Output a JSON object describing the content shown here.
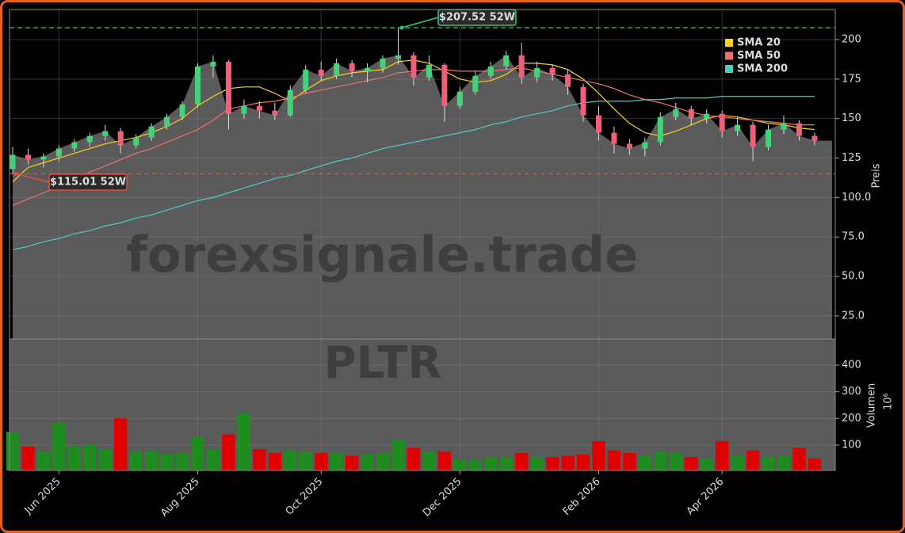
{
  "chart_data": {
    "type": "candlestick",
    "watermark": "forexsignale.trade",
    "symbol": "PLTR",
    "categories": [
      null,
      null,
      null,
      "Jun 2025",
      null,
      null,
      null,
      null,
      null,
      null,
      null,
      null,
      "Aug 2025",
      null,
      null,
      null,
      null,
      null,
      null,
      null,
      "Oct 2025",
      null,
      null,
      null,
      null,
      null,
      null,
      null,
      null,
      "Dec 2025",
      null,
      null,
      null,
      null,
      null,
      null,
      null,
      null,
      "Feb 2026",
      null,
      null,
      null,
      null,
      null,
      null,
      null,
      "Apr 2026",
      null,
      null,
      null,
      null,
      null,
      null
    ],
    "open": [
      118,
      127,
      124,
      126,
      131,
      135,
      139,
      142,
      133,
      138,
      145,
      151,
      159,
      183,
      186,
      153,
      158,
      155,
      152,
      168,
      181,
      177,
      185,
      180,
      182,
      188,
      190,
      176,
      184,
      158,
      167,
      177,
      183,
      190,
      176,
      182,
      178,
      170,
      152,
      141,
      134,
      131,
      135,
      151,
      156,
      150,
      153,
      142,
      146,
      132,
      143,
      147,
      139
    ],
    "high": [
      132,
      131,
      128,
      133,
      137,
      141,
      146,
      144,
      140,
      147,
      153,
      161,
      185,
      190,
      187,
      162,
      161,
      160,
      171,
      184,
      186,
      188,
      187,
      185,
      190,
      207.52,
      192,
      190,
      185,
      170,
      180,
      186,
      193,
      198,
      186,
      184,
      181,
      172,
      158,
      145,
      137,
      138,
      154,
      160,
      158,
      156,
      155,
      151,
      148,
      146,
      152,
      149,
      141
    ],
    "low": [
      115.01,
      121,
      119,
      123,
      129,
      132,
      136,
      128,
      131,
      136,
      143,
      149,
      157,
      176,
      143,
      150,
      150,
      149,
      151,
      166,
      174,
      175,
      176,
      173,
      179,
      184,
      171,
      174,
      148,
      156,
      165,
      175,
      181,
      172,
      173,
      174,
      165,
      148,
      136,
      128,
      127,
      126,
      133,
      149,
      146,
      147,
      138,
      139,
      123,
      130,
      140,
      136,
      133
    ],
    "close": [
      127,
      124,
      126,
      131,
      135,
      139,
      142,
      133,
      138,
      145,
      151,
      159,
      183,
      186,
      153,
      158,
      155,
      152,
      168,
      181,
      177,
      185,
      180,
      182,
      188,
      190,
      176,
      184,
      158,
      167,
      177,
      183,
      190,
      176,
      182,
      178,
      170,
      152,
      141,
      134,
      131,
      135,
      151,
      156,
      150,
      153,
      142,
      146,
      132,
      143,
      147,
      139,
      136
    ],
    "up_color": "#45d07a",
    "down_color": "#f0607a",
    "series": [
      {
        "name": "SMA 20",
        "color": "#ffd21f",
        "values": [
          110,
          119,
          122,
          125,
          128,
          131,
          134,
          136,
          138,
          141,
          145,
          150,
          158,
          164,
          169,
          170,
          170,
          166,
          161,
          168,
          174,
          177,
          179,
          180,
          181,
          186,
          187,
          185,
          180,
          175,
          173,
          174,
          178,
          185,
          185,
          184,
          181,
          175,
          166,
          156,
          147,
          141,
          139,
          142,
          146,
          150,
          152,
          151,
          149,
          147,
          146,
          144,
          143
        ]
      },
      {
        "name": "SMA 50",
        "color": "#f07070",
        "values": [
          95,
          99,
          103,
          107,
          111,
          116,
          120,
          124,
          128,
          131,
          135,
          139,
          143,
          149,
          156,
          158,
          160,
          161,
          163,
          166,
          168,
          170,
          172,
          174,
          176,
          179,
          180,
          181,
          181,
          180,
          180,
          180,
          181,
          182,
          180,
          178,
          176,
          174,
          172,
          169,
          165,
          162,
          160,
          157,
          154,
          152,
          151,
          150,
          149,
          148,
          147,
          146,
          146
        ]
      },
      {
        "name": "SMA 200",
        "color": "#4ecdc4",
        "values": [
          67,
          69,
          72,
          74,
          77,
          79,
          82,
          84,
          87,
          89,
          92,
          95,
          98,
          100,
          103,
          106,
          109,
          112,
          114,
          117,
          120,
          123,
          125,
          128,
          131,
          133,
          135,
          137,
          139,
          141,
          143,
          146,
          148,
          151,
          153,
          155,
          158,
          160,
          161,
          161,
          161,
          162,
          162,
          163,
          163,
          163,
          164,
          164,
          164,
          164,
          164,
          164,
          164
        ]
      }
    ],
    "legend": "upper right",
    "grid": true,
    "ylabel": "Preis",
    "ylim": [
      10.4,
      219.05
    ],
    "yticks": [
      {
        "value": 25,
        "label": "25.0"
      },
      {
        "value": 50,
        "label": "50.0"
      },
      {
        "value": 75,
        "label": "75.0"
      },
      {
        "value": 100,
        "label": "100.0"
      },
      125,
      150,
      175,
      200
    ],
    "high_line": {
      "value": 207.52,
      "label": "$207.52 52W",
      "color": "#2ecc71"
    },
    "low_line": {
      "value": 115.01,
      "label": "$115.01 52W",
      "color": "#e74c3c"
    },
    "volume": {
      "ylabel": "Volumen",
      "offset_label": "10⁶",
      "up_color": "#1e8c1e",
      "down_color": "#e00000",
      "ylim": [
        5,
        498
      ],
      "yticks": [
        100,
        200,
        300,
        400
      ],
      "values": [
        150,
        95,
        75,
        185,
        95,
        100,
        85,
        200,
        75,
        80,
        65,
        70,
        130,
        85,
        140,
        220,
        85,
        70,
        80,
        75,
        70,
        70,
        60,
        65,
        70,
        120,
        90,
        75,
        75,
        45,
        45,
        55,
        55,
        70,
        55,
        55,
        60,
        65,
        115,
        80,
        70,
        60,
        75,
        70,
        55,
        50,
        115,
        60,
        80,
        55,
        60,
        90,
        50
      ]
    }
  }
}
